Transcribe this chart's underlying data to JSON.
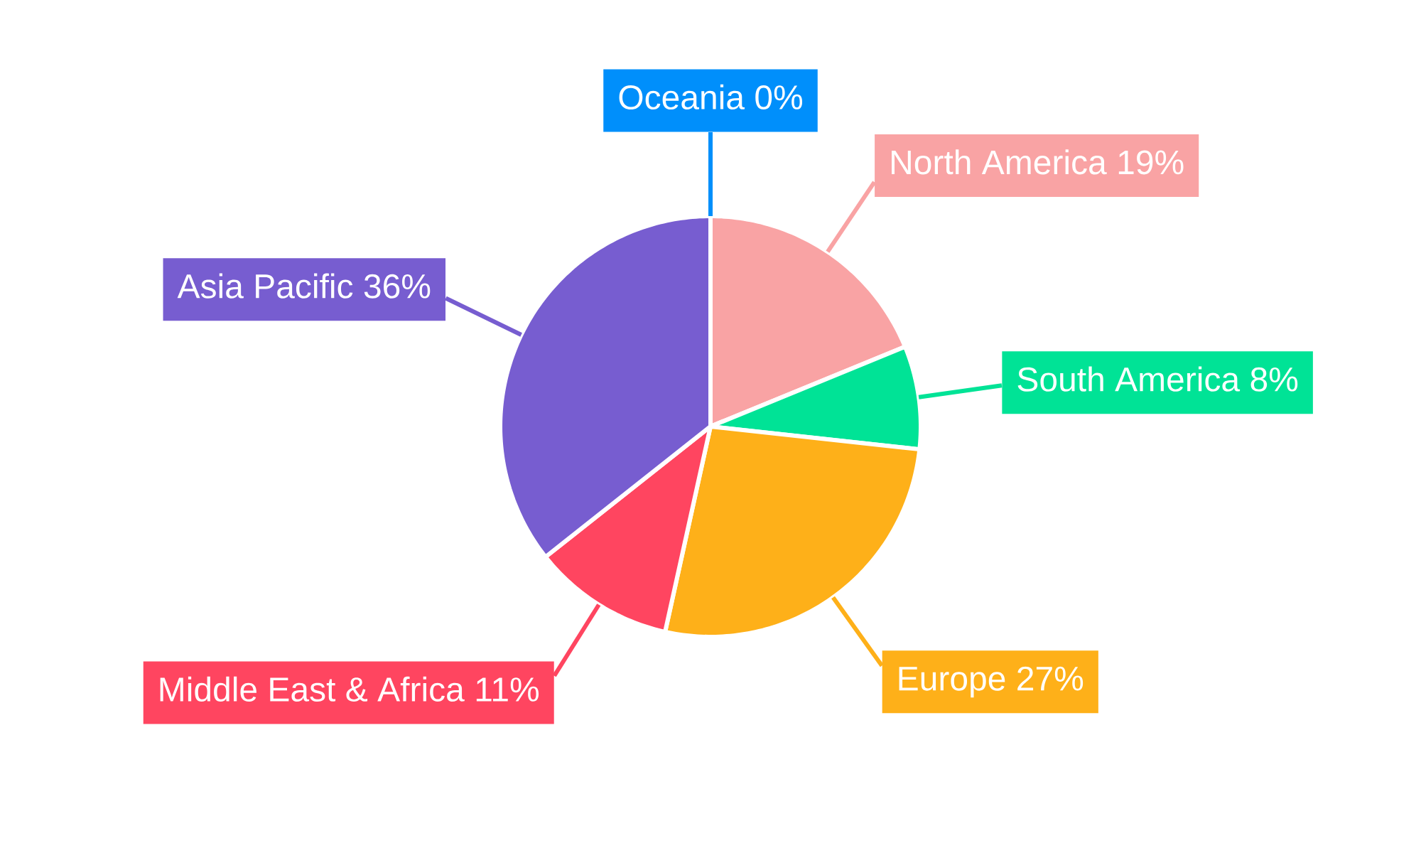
{
  "chart_data": {
    "type": "pie",
    "categories": [
      "North America",
      "South America",
      "Europe",
      "Middle East & Africa",
      "Asia Pacific",
      "Oceania"
    ],
    "values": [
      19,
      8,
      27,
      11,
      36,
      0
    ],
    "colors": [
      "#f9a3a4",
      "#00e396",
      "#feb019",
      "#ff4560",
      "#775dd0",
      "#008ffb"
    ],
    "value_labels": [
      "19%",
      "8%",
      "27%",
      "11%",
      "36%",
      "0%"
    ]
  }
}
